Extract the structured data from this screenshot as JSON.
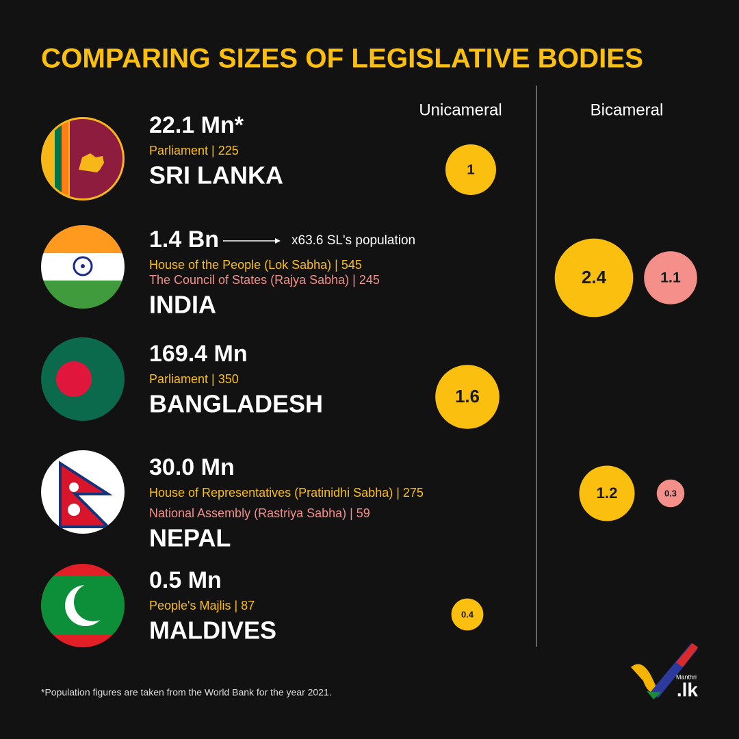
{
  "title": "COMPARING SIZES OF LEGISLATIVE BODIES",
  "columns": [
    "Unicameral",
    "Bicameral"
  ],
  "countries": [
    {
      "population": "22.1 Mn*",
      "houses": [
        {
          "label": "Parliament | 225",
          "value": 1
        }
      ],
      "name": "SRI LANKA"
    },
    {
      "population": "1.4 Bn",
      "note": "x63.6 SL's population",
      "houses": [
        {
          "label": "House of the People (Lok Sabha) | 545",
          "value": 2.4
        },
        {
          "label": "The Council of States (Rajya Sabha) | 245",
          "value": 1.1
        }
      ],
      "name": "INDIA"
    },
    {
      "population": "169.4 Mn",
      "houses": [
        {
          "label": "Parliament | 350",
          "value": 1.6
        }
      ],
      "name": "BANGLADESH"
    },
    {
      "population": "30.0 Mn",
      "houses": [
        {
          "label": "House of Representatives (Pratinidhi Sabha) | 275",
          "value": 1.2
        },
        {
          "label": "National Assembly (Rastriya Sabha) | 59",
          "value": 0.3
        }
      ],
      "name": "NEPAL"
    },
    {
      "population": "0.5 Mn",
      "houses": [
        {
          "label": "People's Majlis | 87",
          "value": 0.4
        }
      ],
      "name": "MALDIVES"
    }
  ],
  "footnote": "*Population figures are taken from the World Bank for the year 2021.",
  "logo": {
    "small": "Manthri",
    "big": ".lk"
  }
}
